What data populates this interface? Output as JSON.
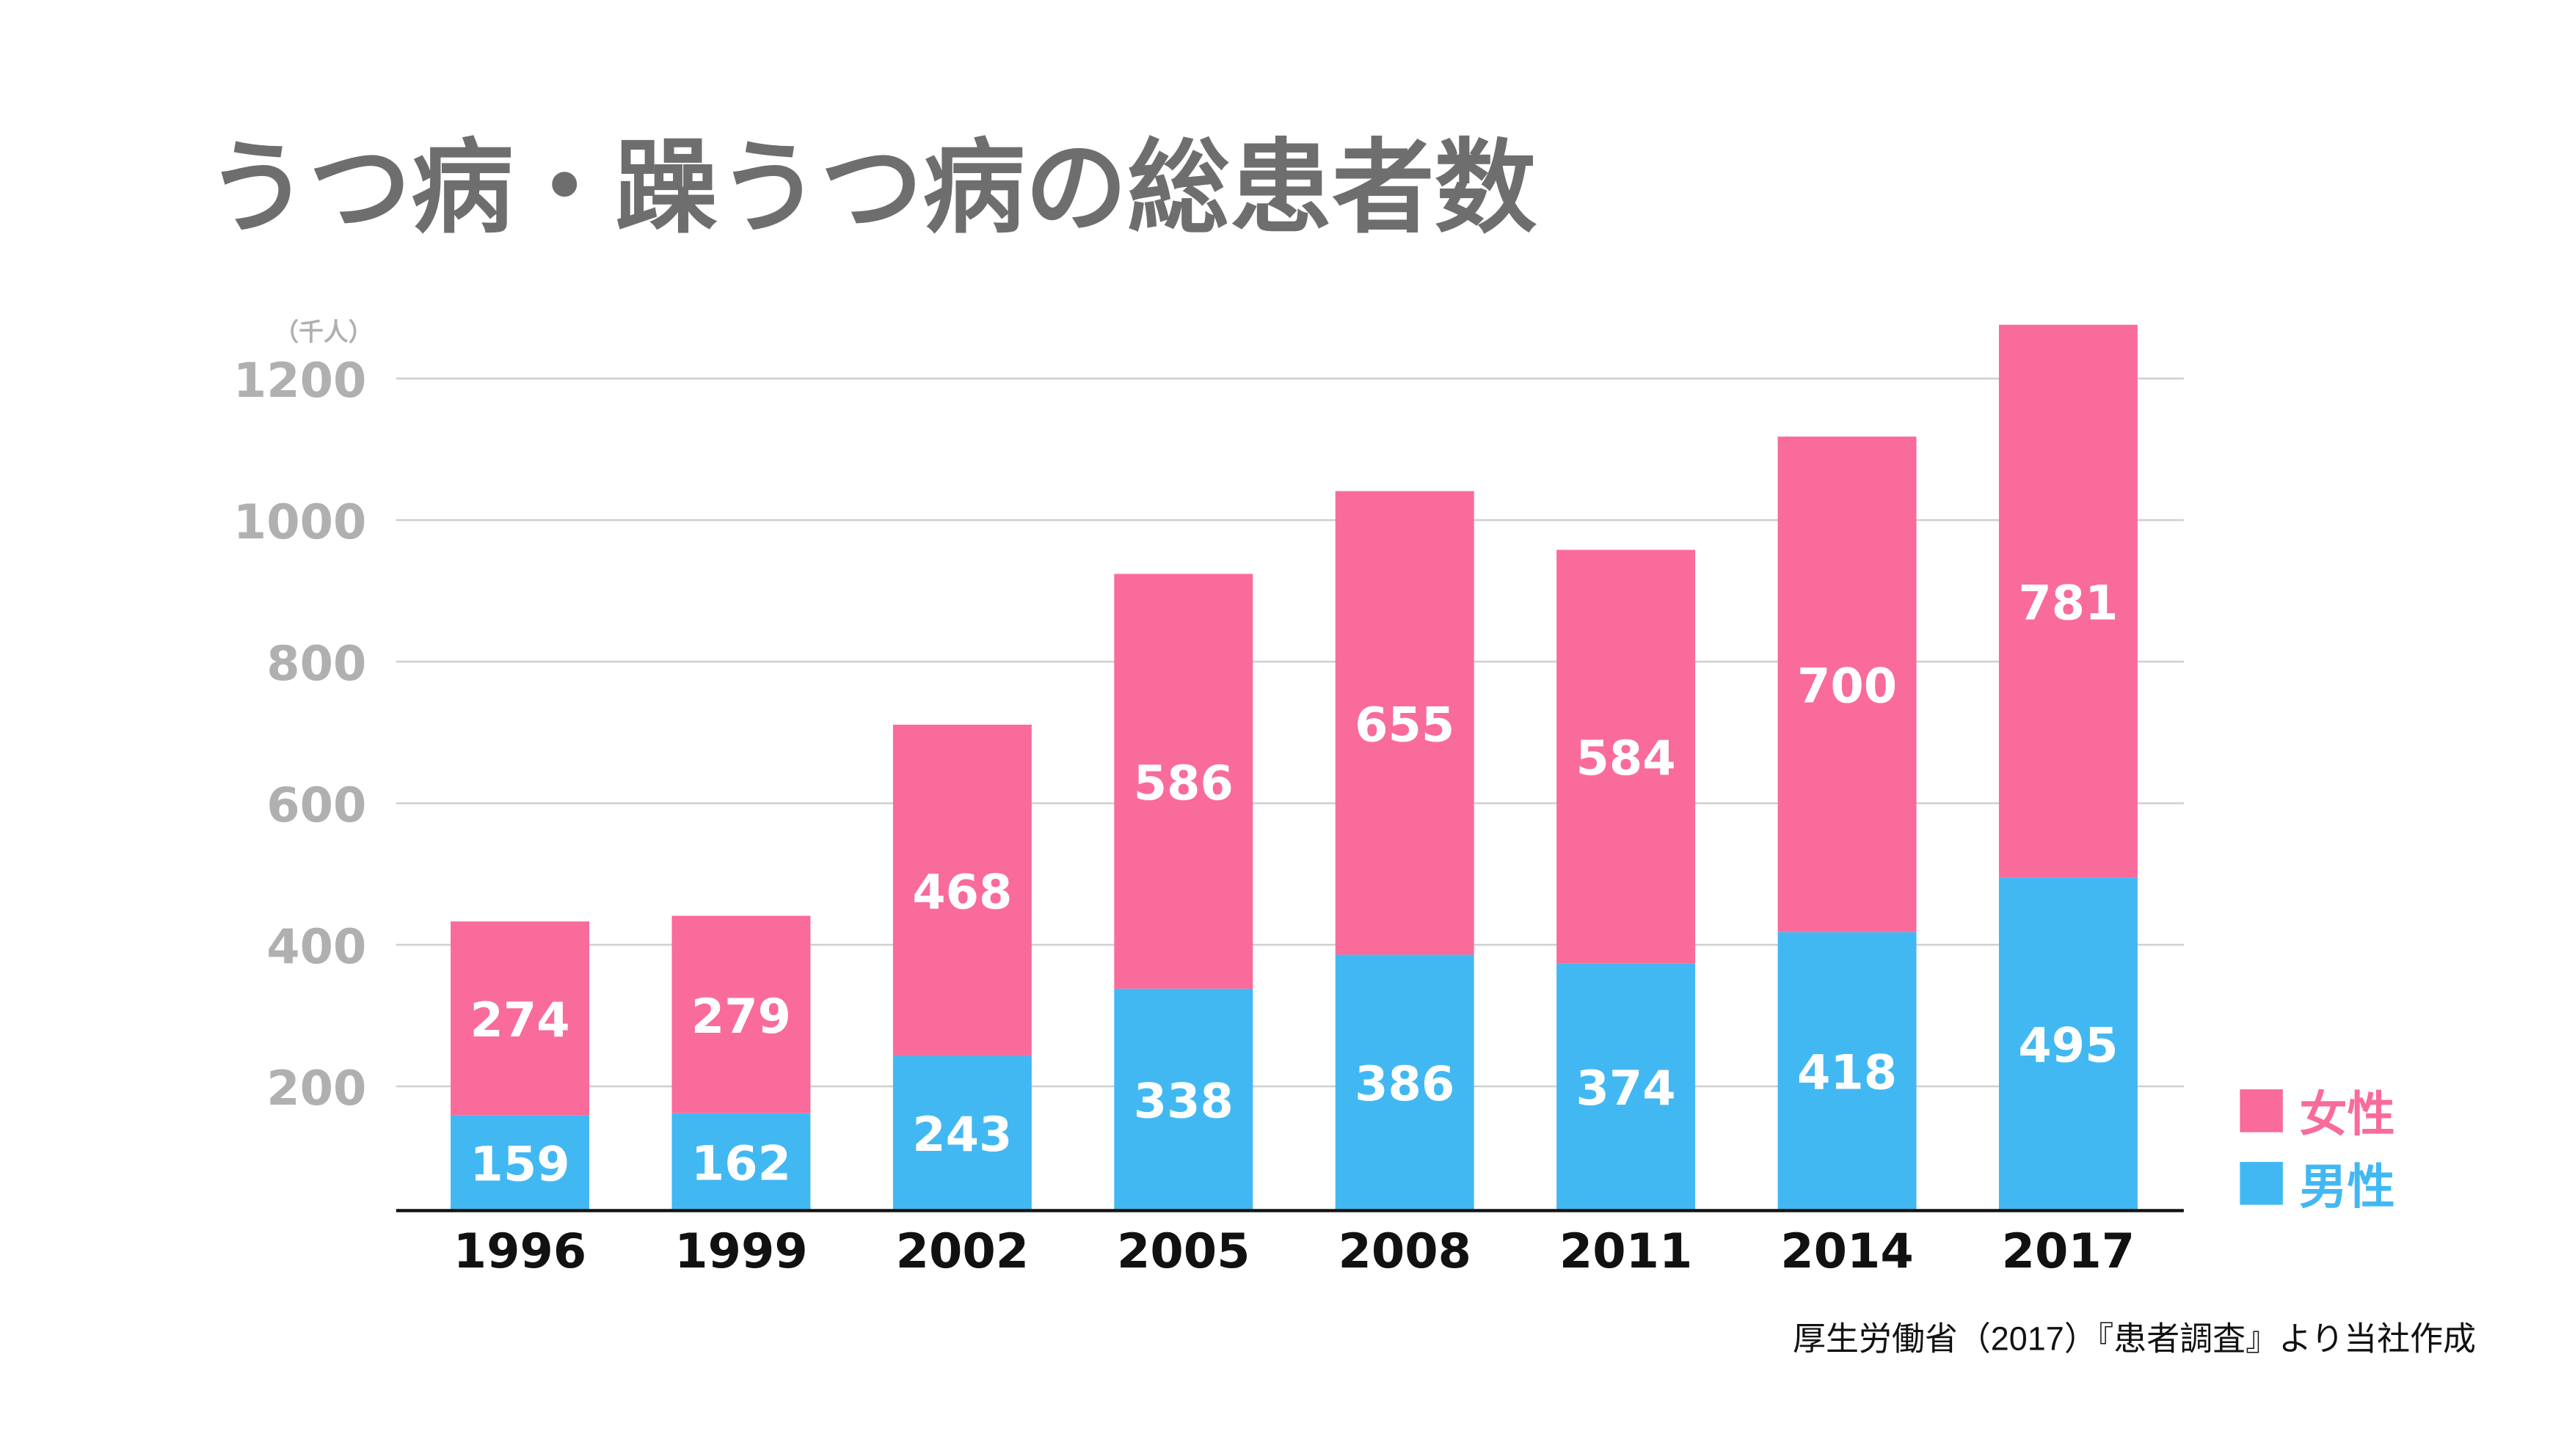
{
  "chart_data": {
    "type": "bar",
    "stacked": true,
    "title": "うつ病・躁うつ病の総患者数",
    "unit_label": "（千人）",
    "categories": [
      "1996",
      "1999",
      "2002",
      "2005",
      "2008",
      "2011",
      "2014",
      "2017"
    ],
    "series": [
      {
        "name": "男性",
        "color": "#42B8F3",
        "values": [
          159,
          162,
          243,
          338,
          386,
          374,
          418,
          495
        ]
      },
      {
        "name": "女性",
        "color": "#F96B9B",
        "values": [
          274,
          279,
          468,
          586,
          655,
          584,
          700,
          781
        ]
      }
    ],
    "yticks": [
      200,
      400,
      600,
      800,
      1000,
      1200
    ],
    "ylim": [
      0,
      1200
    ],
    "grid": true,
    "legend_position": "bottom-right",
    "source": "厚生労働省（2017）『患者調査』より当社作成"
  }
}
